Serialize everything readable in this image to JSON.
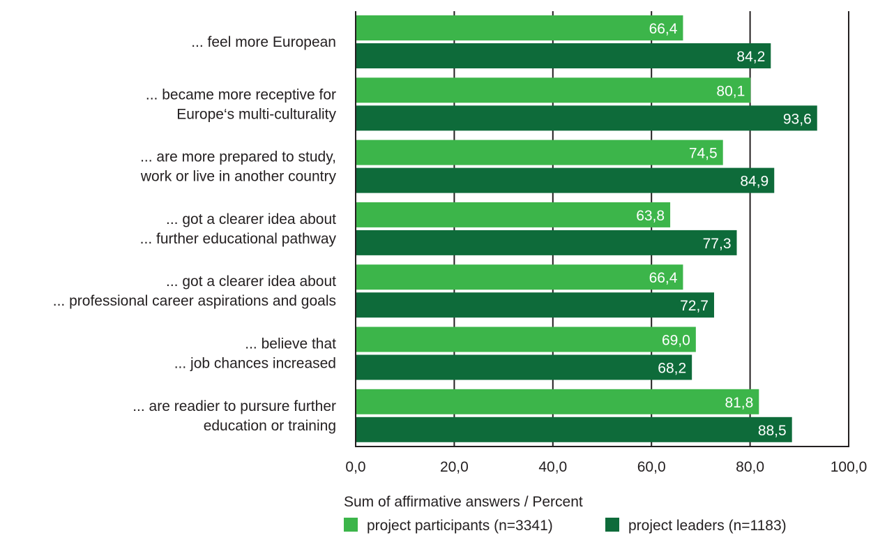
{
  "chart_data": {
    "type": "bar",
    "orientation": "horizontal",
    "categories": [
      [
        "... feel more European"
      ],
      [
        "... became more receptive for",
        "Europe‘s multi-culturality"
      ],
      [
        "... are more prepared to study,",
        "work or live in another country"
      ],
      [
        "... got a clearer idea about",
        "... further educational pathway"
      ],
      [
        "... got a clearer idea about",
        "... professional career aspirations and goals"
      ],
      [
        "... believe that",
        "... job chances increased"
      ],
      [
        "... are readier to pursure further",
        "education or training"
      ]
    ],
    "series": [
      {
        "name": "project participants (n=3341)",
        "color": "#3cb54a",
        "values": [
          66.4,
          80.1,
          74.5,
          63.8,
          66.4,
          69.0,
          81.8
        ],
        "labels": [
          "66,4",
          "80,1",
          "74,5",
          "63,8",
          "66,4",
          "69,0",
          "81,8"
        ]
      },
      {
        "name": "project leaders (n=1183)",
        "color": "#0e6b3a",
        "values": [
          84.2,
          93.6,
          84.9,
          77.3,
          72.7,
          68.2,
          88.5
        ],
        "labels": [
          "84,2",
          "93,6",
          "84,9",
          "77,3",
          "72,7",
          "68,2",
          "88,5"
        ]
      }
    ],
    "xlim": [
      0,
      100
    ],
    "xticks": [
      0,
      20,
      40,
      60,
      80,
      100
    ],
    "xtick_labels": [
      "0,0",
      "20,0",
      "40,0",
      "60,0",
      "80,0",
      "100,0"
    ],
    "xlabel": "Sum of affirmative answers / Percent",
    "ylabel": "",
    "title": "",
    "grid": "vertical",
    "legend_position": "bottom"
  }
}
